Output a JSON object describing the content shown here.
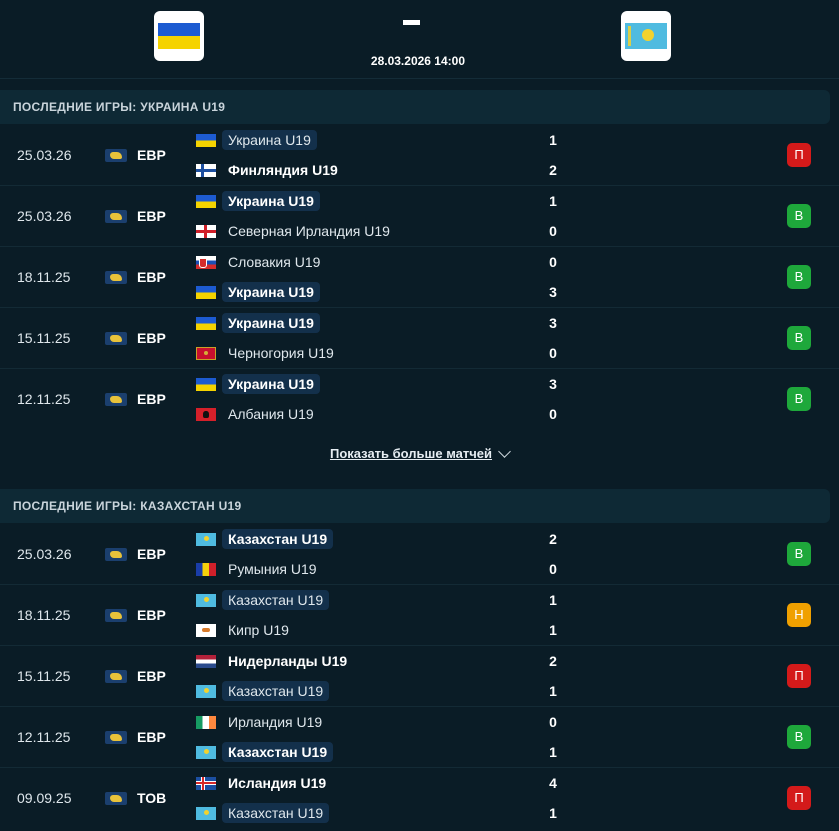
{
  "match": {
    "home_flag": "ua",
    "away_flag": "kz",
    "score": "-",
    "datetime": "28.03.2026 14:00"
  },
  "colors": {
    "win": "#1ea83b",
    "loss": "#d41a1a",
    "draw": "#f0a000"
  },
  "sections": [
    {
      "title": "ПОСЛЕДНИЕ ИГРЫ: УКРАИНА U19",
      "rows": [
        {
          "date": "25.03.26",
          "comp": "ЕВР",
          "home": {
            "name": "Украина U19",
            "flag": "ua",
            "bold": false,
            "hl": true
          },
          "away": {
            "name": "Финляндия U19",
            "flag": "fi",
            "bold": true,
            "hl": false
          },
          "home_score": "1",
          "away_score": "2",
          "result": "П",
          "result_type": "loss"
        },
        {
          "date": "25.03.26",
          "comp": "ЕВР",
          "home": {
            "name": "Украина U19",
            "flag": "ua",
            "bold": true,
            "hl": true
          },
          "away": {
            "name": "Северная Ирландия U19",
            "flag": "nir",
            "bold": false,
            "hl": false
          },
          "home_score": "1",
          "away_score": "0",
          "result": "В",
          "result_type": "win"
        },
        {
          "date": "18.11.25",
          "comp": "ЕВР",
          "home": {
            "name": "Словакия U19",
            "flag": "sk",
            "bold": false,
            "hl": false
          },
          "away": {
            "name": "Украина U19",
            "flag": "ua",
            "bold": true,
            "hl": true
          },
          "home_score": "0",
          "away_score": "3",
          "result": "В",
          "result_type": "win"
        },
        {
          "date": "15.11.25",
          "comp": "ЕВР",
          "home": {
            "name": "Украина U19",
            "flag": "ua",
            "bold": true,
            "hl": true
          },
          "away": {
            "name": "Черногория U19",
            "flag": "me",
            "bold": false,
            "hl": false
          },
          "home_score": "3",
          "away_score": "0",
          "result": "В",
          "result_type": "win"
        },
        {
          "date": "12.11.25",
          "comp": "ЕВР",
          "home": {
            "name": "Украина U19",
            "flag": "ua",
            "bold": true,
            "hl": true
          },
          "away": {
            "name": "Албания U19",
            "flag": "al",
            "bold": false,
            "hl": false
          },
          "home_score": "3",
          "away_score": "0",
          "result": "В",
          "result_type": "win"
        }
      ]
    },
    {
      "title": "ПОСЛЕДНИЕ ИГРЫ: КАЗАХСТАН U19",
      "rows": [
        {
          "date": "25.03.26",
          "comp": "ЕВР",
          "home": {
            "name": "Казахстан U19",
            "flag": "kz",
            "bold": true,
            "hl": true
          },
          "away": {
            "name": "Румыния U19",
            "flag": "ro",
            "bold": false,
            "hl": false
          },
          "home_score": "2",
          "away_score": "0",
          "result": "В",
          "result_type": "win"
        },
        {
          "date": "18.11.25",
          "comp": "ЕВР",
          "home": {
            "name": "Казахстан U19",
            "flag": "kz",
            "bold": false,
            "hl": true
          },
          "away": {
            "name": "Кипр U19",
            "flag": "cy",
            "bold": false,
            "hl": false
          },
          "home_score": "1",
          "away_score": "1",
          "result": "Н",
          "result_type": "draw"
        },
        {
          "date": "15.11.25",
          "comp": "ЕВР",
          "home": {
            "name": "Нидерланды U19",
            "flag": "nl",
            "bold": true,
            "hl": false
          },
          "away": {
            "name": "Казахстан U19",
            "flag": "kz",
            "bold": false,
            "hl": true
          },
          "home_score": "2",
          "away_score": "1",
          "result": "П",
          "result_type": "loss"
        },
        {
          "date": "12.11.25",
          "comp": "ЕВР",
          "home": {
            "name": "Ирландия U19",
            "flag": "ie",
            "bold": false,
            "hl": false
          },
          "away": {
            "name": "Казахстан U19",
            "flag": "kz",
            "bold": true,
            "hl": true
          },
          "home_score": "0",
          "away_score": "1",
          "result": "В",
          "result_type": "win"
        },
        {
          "date": "09.09.25",
          "comp": "ТОВ",
          "home": {
            "name": "Исландия U19",
            "flag": "is",
            "bold": true,
            "hl": false
          },
          "away": {
            "name": "Казахстан U19",
            "flag": "kz",
            "bold": false,
            "hl": true
          },
          "home_score": "4",
          "away_score": "1",
          "result": "П",
          "result_type": "loss"
        }
      ]
    }
  ],
  "show_more_label": "Показать больше матчей"
}
